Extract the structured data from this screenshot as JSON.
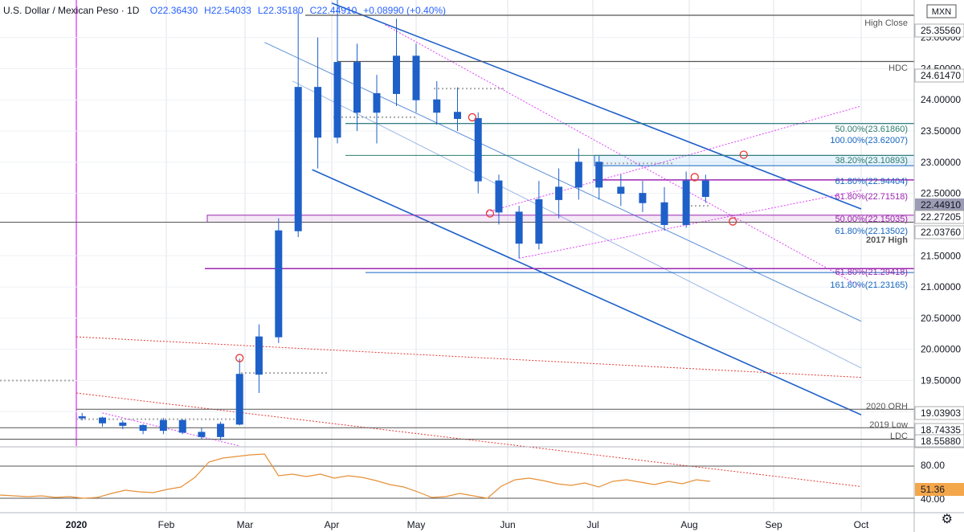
{
  "header": {
    "symbol": "U.S. Dollar / Mexican Peso · 1D",
    "open": "O22.36430",
    "high": "H22.54033",
    "low": "L22.35180",
    "close": "C22.44910",
    "change": "+0.08990 (+0.40%)"
  },
  "chart_data": {
    "type": "candlestick",
    "ylim": [
      18.45,
      25.6
    ],
    "price_axis_top_badge": "MXN",
    "time_axis": [
      "2020",
      "Feb",
      "Mar",
      "Apr",
      "May",
      "Jun",
      "Jul",
      "Aug",
      "Sep",
      "Oct"
    ],
    "price_ticks": [
      "25.00000",
      "24.50000",
      "24.00000",
      "23.50000",
      "23.00000",
      "22.50000",
      "21.50000",
      "21.00000",
      "20.50000",
      "20.00000",
      "19.50000",
      "19.00000"
    ],
    "price_axis_labels": [
      {
        "value": 25.3556,
        "text": "25.35560",
        "style": "boxed"
      },
      {
        "value": 24.6147,
        "text": "24.61470",
        "style": "boxed"
      },
      {
        "value": 22.4491,
        "text": "22.44910",
        "style": "last"
      },
      {
        "value": 22.27205,
        "text": "22.27205",
        "style": "boxed"
      },
      {
        "value": 22.0376,
        "text": "22.03760",
        "style": "boxed"
      },
      {
        "value": 19.03903,
        "text": "19.03903",
        "style": "boxed"
      },
      {
        "value": 18.74335,
        "text": "18.74335",
        "style": "boxed"
      },
      {
        "value": 18.5588,
        "text": "18.55880",
        "style": "boxed"
      }
    ],
    "level_labels": [
      {
        "value": 25.3556,
        "text": "High Close",
        "color": "#555555"
      },
      {
        "value": 24.6147,
        "text": "HDC",
        "color": "#555555"
      },
      {
        "value": 23.6186,
        "text": "50.00%(23.61860)",
        "color": "#2e7d6e"
      },
      {
        "value": 23.62007,
        "text": "100.00%(23.62007)",
        "color": "#1565c0"
      },
      {
        "value": 23.10893,
        "text": "38.20%(23.10893)",
        "color": "#2e7d6e"
      },
      {
        "value": 22.94404,
        "text": "61.80%(22.94404)",
        "color": "#1565c0"
      },
      {
        "value": 22.71518,
        "text": "61.80%(22.71518)",
        "color": "#9c27b0"
      },
      {
        "value": 22.15035,
        "text": "50.00%(22.15035)",
        "color": "#9c27b0"
      },
      {
        "value": 22.13502,
        "text": "61.80%(22.13502)",
        "color": "#1565c0"
      },
      {
        "value": 22.0376,
        "text": "2017 High",
        "color": "#555555"
      },
      {
        "value": 21.29418,
        "text": "61.80%(21.29418)",
        "color": "#9c27b0"
      },
      {
        "value": 21.23165,
        "text": "161.80%(21.23165)",
        "color": "#1565c0"
      },
      {
        "value": 19.03903,
        "text": "2020 ORH",
        "color": "#555555"
      },
      {
        "value": 18.74335,
        "text": "2019 Low",
        "color": "#555555"
      },
      {
        "value": 18.5588,
        "text": "LDC",
        "color": "#555555"
      }
    ],
    "ohlc": [
      {
        "date": "2020-01-03",
        "o": 18.92,
        "h": 18.98,
        "l": 18.86,
        "c": 18.9
      },
      {
        "date": "2020-01-10",
        "o": 18.9,
        "h": 18.92,
        "l": 18.76,
        "c": 18.82
      },
      {
        "date": "2020-01-17",
        "o": 18.82,
        "h": 18.86,
        "l": 18.72,
        "c": 18.78
      },
      {
        "date": "2020-01-24",
        "o": 18.78,
        "h": 18.8,
        "l": 18.64,
        "c": 18.7
      },
      {
        "date": "2020-01-31",
        "o": 18.7,
        "h": 18.9,
        "l": 18.64,
        "c": 18.86
      },
      {
        "date": "2020-02-07",
        "o": 18.86,
        "h": 18.88,
        "l": 18.64,
        "c": 18.67
      },
      {
        "date": "2020-02-14",
        "o": 18.67,
        "h": 18.74,
        "l": 18.56,
        "c": 18.6
      },
      {
        "date": "2020-02-21",
        "o": 18.6,
        "h": 18.84,
        "l": 18.54,
        "c": 18.8
      },
      {
        "date": "2020-02-28",
        "o": 18.8,
        "h": 19.85,
        "l": 18.78,
        "c": 19.6
      },
      {
        "date": "2020-03-06",
        "o": 19.6,
        "h": 20.4,
        "l": 19.3,
        "c": 20.2
      },
      {
        "date": "2020-03-13",
        "o": 20.2,
        "h": 22.1,
        "l": 20.1,
        "c": 21.9
      },
      {
        "date": "2020-03-20",
        "o": 21.9,
        "h": 25.4,
        "l": 21.8,
        "c": 24.2
      },
      {
        "date": "2020-03-27",
        "o": 24.2,
        "h": 25.0,
        "l": 22.9,
        "c": 23.4
      },
      {
        "date": "2020-04-03",
        "o": 23.4,
        "h": 25.78,
        "l": 23.3,
        "c": 24.6
      },
      {
        "date": "2020-04-10",
        "o": 24.6,
        "h": 24.9,
        "l": 23.5,
        "c": 23.8
      },
      {
        "date": "2020-04-17",
        "o": 23.8,
        "h": 24.4,
        "l": 23.3,
        "c": 24.1
      },
      {
        "date": "2020-04-24",
        "o": 24.1,
        "h": 25.3,
        "l": 23.9,
        "c": 24.7
      },
      {
        "date": "2020-05-01",
        "o": 24.7,
        "h": 24.9,
        "l": 23.8,
        "c": 24.0
      },
      {
        "date": "2020-05-08",
        "o": 24.0,
        "h": 24.3,
        "l": 23.6,
        "c": 23.8
      },
      {
        "date": "2020-05-15",
        "o": 23.8,
        "h": 24.2,
        "l": 23.5,
        "c": 23.7
      },
      {
        "date": "2020-05-22",
        "o": 23.7,
        "h": 23.8,
        "l": 22.5,
        "c": 22.7
      },
      {
        "date": "2020-05-29",
        "o": 22.7,
        "h": 22.8,
        "l": 22.0,
        "c": 22.2
      },
      {
        "date": "2020-06-05",
        "o": 22.2,
        "h": 22.3,
        "l": 21.46,
        "c": 21.7
      },
      {
        "date": "2020-06-12",
        "o": 21.7,
        "h": 22.7,
        "l": 21.6,
        "c": 22.4
      },
      {
        "date": "2020-06-19",
        "o": 22.4,
        "h": 22.9,
        "l": 22.1,
        "c": 22.6
      },
      {
        "date": "2020-06-26",
        "o": 22.6,
        "h": 23.22,
        "l": 22.4,
        "c": 23.0
      },
      {
        "date": "2020-07-03",
        "o": 23.0,
        "h": 23.1,
        "l": 22.4,
        "c": 22.6
      },
      {
        "date": "2020-07-10",
        "o": 22.6,
        "h": 22.8,
        "l": 22.3,
        "c": 22.5
      },
      {
        "date": "2020-07-17",
        "o": 22.5,
        "h": 22.7,
        "l": 22.2,
        "c": 22.35
      },
      {
        "date": "2020-07-24",
        "o": 22.35,
        "h": 22.6,
        "l": 21.9,
        "c": 22.0
      },
      {
        "date": "2020-07-31",
        "o": 22.0,
        "h": 22.85,
        "l": 21.95,
        "c": 22.7
      },
      {
        "date": "2020-08-07",
        "o": 22.7,
        "h": 22.8,
        "l": 22.35,
        "c": 22.45
      }
    ],
    "rsi": {
      "axis_labels": [
        "80.00",
        "40.00"
      ],
      "value": "51.36",
      "series": [
        34,
        33,
        32,
        33,
        31,
        32,
        30,
        31,
        36,
        40,
        38,
        37,
        41,
        44,
        56,
        75,
        80,
        82,
        84,
        85,
        58,
        60,
        57,
        60,
        55,
        58,
        56,
        52,
        47,
        44,
        38,
        31,
        32,
        36,
        33,
        30,
        45,
        53,
        55,
        52,
        48,
        46,
        49,
        44,
        51,
        53,
        50,
        47,
        51,
        48,
        53,
        51
      ]
    }
  }
}
